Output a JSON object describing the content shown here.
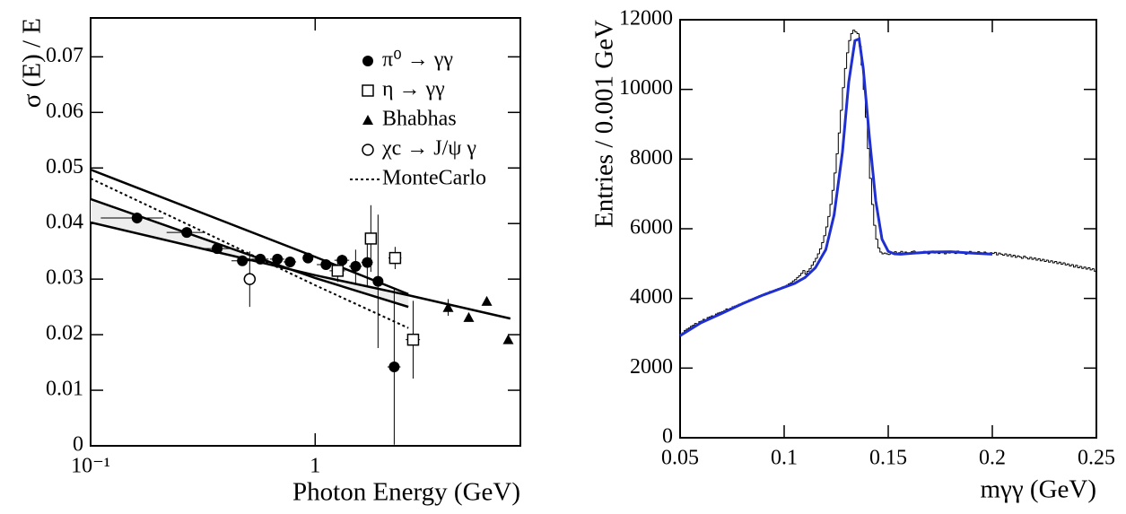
{
  "chart_data": [
    {
      "type": "scatter",
      "ylabel": "σ (E) / E",
      "xlabel": "Photon Energy (GeV)",
      "xlog": true,
      "xlim": [
        0.1,
        8.2
      ],
      "xticks": [
        {
          "value": 0.1,
          "label": "10⁻¹"
        },
        1
      ],
      "ylim": [
        0,
        0.077
      ],
      "yticks": [
        0,
        0.01,
        0.02,
        0.03,
        0.04,
        0.05,
        0.06,
        0.07
      ],
      "legend": "top-right",
      "series": [
        {
          "name": "π⁰ → γγ",
          "marker": "circle-filled",
          "color": "#000000",
          "x": [
            0.161,
            0.268,
            0.366,
            0.474,
            0.57,
            0.679,
            0.773,
            0.929,
            1.117,
            1.318,
            1.514,
            1.706,
            1.905,
            2.249
          ],
          "values": [
            0.041,
            0.0384,
            0.0355,
            0.0333,
            0.0336,
            0.0336,
            0.0331,
            0.0338,
            0.0326,
            0.0334,
            0.0323,
            0.033,
            0.0296,
            0.0142
          ],
          "yerr": [
            0.001,
            0.0008,
            0.0008,
            0.0008,
            0.0008,
            0.0008,
            0.0008,
            0.0008,
            0.0008,
            0.001,
            0.003,
            0.0045,
            0.012,
            0.014
          ],
          "xerr": [
            0.05,
            0.05,
            0.05,
            0.05,
            0.05,
            0.05,
            0.05,
            0.05,
            0.1,
            0.1,
            0.1,
            0.1,
            0.1,
            0.15
          ]
        },
        {
          "name": "η → γγ",
          "marker": "square-open",
          "color": "#000000",
          "x": [
            1.259,
            1.77,
            2.27,
            2.73
          ],
          "values": [
            0.0315,
            0.0373,
            0.0338,
            0.0191
          ],
          "yerr": [
            0.002,
            0.006,
            0.002,
            0.007
          ],
          "xerr": [
            0.1,
            0.1,
            0.15,
            0.2
          ]
        },
        {
          "name": "Bhabhas",
          "marker": "triangle-filled",
          "color": "#000000",
          "x": [
            3.91,
            4.83,
            5.81,
            7.24
          ],
          "values": [
            0.0249,
            0.0231,
            0.026,
            0.0191
          ],
          "yerr": [
            0.0015,
            0,
            0,
            0
          ]
        },
        {
          "name": "χc → J/ψ γ",
          "marker": "circle-open",
          "color": "#000000",
          "x": [
            0.511
          ],
          "values": [
            0.03
          ],
          "yerr": [
            0.005
          ]
        }
      ],
      "lines": [
        {
          "style": "solid",
          "x": [
            0.1,
            1,
            2.6
          ],
          "values": [
            0.0497,
            0.034,
            0.0273
          ]
        },
        {
          "style": "solid",
          "x": [
            0.1,
            1,
            2.6
          ],
          "values": [
            0.0444,
            0.0302,
            0.025
          ]
        },
        {
          "style": "solid",
          "x": [
            0.1,
            1,
            2.6,
            7.4
          ],
          "values": [
            0.0402,
            0.0307,
            0.0271,
            0.0229
          ]
        },
        {
          "name": "MonteCarlo",
          "style": "dotted",
          "x": [
            0.1,
            0.3,
            1,
            2.6
          ],
          "values": [
            0.0481,
            0.039,
            0.0289,
            0.0212
          ]
        }
      ]
    },
    {
      "type": "histogram",
      "ylabel": "Entries / 0.001 GeV",
      "xlabel": "mγγ (GeV)",
      "xlim": [
        0.05,
        0.25
      ],
      "xticks": [
        0.05,
        0.1,
        0.15,
        0.2,
        0.25
      ],
      "ylim": [
        0,
        12000
      ],
      "yticks": [
        0,
        2000,
        4000,
        6000,
        8000,
        10000,
        12000
      ],
      "color": "#000000",
      "bins": [
        0.05,
        0.051,
        0.052,
        0.053,
        0.054,
        0.055,
        0.056,
        0.057,
        0.058,
        0.059,
        0.06,
        0.061,
        0.062,
        0.063,
        0.064,
        0.065,
        0.066,
        0.067,
        0.068,
        0.069,
        0.07,
        0.071,
        0.072,
        0.073,
        0.074,
        0.075,
        0.076,
        0.077,
        0.078,
        0.079,
        0.08,
        0.081,
        0.082,
        0.083,
        0.084,
        0.085,
        0.086,
        0.087,
        0.088,
        0.089,
        0.09,
        0.091,
        0.092,
        0.093,
        0.094,
        0.095,
        0.096,
        0.097,
        0.098,
        0.099,
        0.1,
        0.101,
        0.102,
        0.103,
        0.104,
        0.105,
        0.106,
        0.107,
        0.108,
        0.109,
        0.11,
        0.111,
        0.112,
        0.113,
        0.114,
        0.115,
        0.116,
        0.117,
        0.118,
        0.119,
        0.12,
        0.121,
        0.122,
        0.123,
        0.124,
        0.125,
        0.126,
        0.127,
        0.128,
        0.129,
        0.13,
        0.131,
        0.132,
        0.133,
        0.134,
        0.135,
        0.136,
        0.137,
        0.138,
        0.139,
        0.14,
        0.141,
        0.142,
        0.143,
        0.144,
        0.145,
        0.146,
        0.147,
        0.148,
        0.149,
        0.15,
        0.151,
        0.152,
        0.153,
        0.154,
        0.155,
        0.156,
        0.157,
        0.158,
        0.159,
        0.16,
        0.161,
        0.162,
        0.163,
        0.164,
        0.165,
        0.166,
        0.167,
        0.168,
        0.169,
        0.17,
        0.171,
        0.172,
        0.173,
        0.174,
        0.175,
        0.176,
        0.177,
        0.178,
        0.179,
        0.18,
        0.181,
        0.182,
        0.183,
        0.184,
        0.185,
        0.186,
        0.187,
        0.188,
        0.189,
        0.19,
        0.191,
        0.192,
        0.193,
        0.194,
        0.195,
        0.196,
        0.197,
        0.198,
        0.199,
        0.2,
        0.201,
        0.202,
        0.203,
        0.204,
        0.205,
        0.206,
        0.207,
        0.208,
        0.209,
        0.21,
        0.211,
        0.212,
        0.213,
        0.214,
        0.215,
        0.216,
        0.217,
        0.218,
        0.219,
        0.22,
        0.221,
        0.222,
        0.223,
        0.224,
        0.225,
        0.226,
        0.227,
        0.228,
        0.229,
        0.23,
        0.231,
        0.232,
        0.233,
        0.234,
        0.235,
        0.236,
        0.237,
        0.238,
        0.239,
        0.24,
        0.241,
        0.242,
        0.243,
        0.244,
        0.245,
        0.246,
        0.247,
        0.248,
        0.249,
        0.25
      ],
      "values": [
        2960,
        3010,
        3080,
        3120,
        3150,
        3200,
        3230,
        3280,
        3270,
        3330,
        3350,
        3400,
        3380,
        3450,
        3470,
        3500,
        3480,
        3550,
        3580,
        3600,
        3620,
        3650,
        3700,
        3680,
        3720,
        3760,
        3780,
        3800,
        3830,
        3850,
        3880,
        3900,
        3920,
        3960,
        3980,
        4000,
        4030,
        4050,
        4080,
        4100,
        4120,
        4150,
        4170,
        4200,
        4180,
        4230,
        4260,
        4280,
        4300,
        4330,
        4350,
        4380,
        4420,
        4450,
        4500,
        4540,
        4600,
        4650,
        4720,
        4800,
        4700,
        4780,
        4850,
        4950,
        5050,
        5150,
        5280,
        5420,
        5600,
        5800,
        6050,
        6350,
        6700,
        7100,
        7600,
        8150,
        8750,
        9400,
        10050,
        10600,
        11050,
        11400,
        11600,
        11700,
        11650,
        11600,
        11250,
        10700,
        10000,
        9200,
        8300,
        7450,
        6700,
        6100,
        5700,
        5450,
        5330,
        5280,
        5300,
        5280,
        5260,
        5320,
        5300,
        5340,
        5280,
        5310,
        5350,
        5290,
        5330,
        5300,
        5270,
        5340,
        5360,
        5310,
        5290,
        5330,
        5300,
        5350,
        5320,
        5280,
        5310,
        5360,
        5300,
        5330,
        5290,
        5340,
        5310,
        5280,
        5350,
        5300,
        5330,
        5320,
        5290,
        5360,
        5310,
        5340,
        5300,
        5270,
        5330,
        5350,
        5300,
        5320,
        5290,
        5340,
        5310,
        5280,
        5330,
        5300,
        5270,
        5310,
        5290,
        5320,
        5250,
        5300,
        5270,
        5240,
        5280,
        5220,
        5260,
        5200,
        5240,
        5180,
        5220,
        5190,
        5150,
        5210,
        5170,
        5130,
        5180,
        5120,
        5160,
        5100,
        5140,
        5080,
        5120,
        5060,
        5100,
        5040,
        5080,
        5020,
        5060,
        5000,
        5040,
        4980,
        5020,
        4960,
        4990,
        4930,
        4970,
        4900,
        4950,
        4880,
        4920,
        4860,
        4900,
        4840,
        4880,
        4820,
        4850,
        4780
      ],
      "fit": {
        "color": "#1f2fd0",
        "x": [
          0.05,
          0.06,
          0.07,
          0.08,
          0.09,
          0.1,
          0.105,
          0.11,
          0.115,
          0.12,
          0.124,
          0.128,
          0.131,
          0.134,
          0.136,
          0.138,
          0.141,
          0.144,
          0.147,
          0.15,
          0.153,
          0.156,
          0.16,
          0.17,
          0.18,
          0.19,
          0.2
        ],
        "values": [
          2930,
          3300,
          3570,
          3850,
          4100,
          4320,
          4430,
          4600,
          4880,
          5400,
          6400,
          8200,
          10200,
          11400,
          11450,
          10600,
          8600,
          6800,
          5700,
          5350,
          5280,
          5270,
          5290,
          5330,
          5340,
          5300,
          5270
        ]
      }
    }
  ]
}
